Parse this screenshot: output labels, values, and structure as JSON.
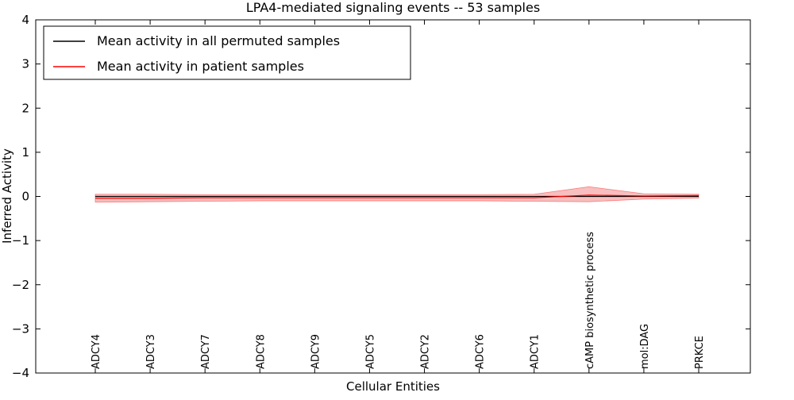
{
  "chart_data": {
    "type": "line",
    "title": "LPA4-mediated signaling events -- 53 samples",
    "xlabel": "Cellular Entities",
    "ylabel": "Inferred Activity",
    "ylim": [
      -4,
      4
    ],
    "yticks": [
      -4,
      -3,
      -2,
      -1,
      0,
      1,
      2,
      3,
      4
    ],
    "grid": false,
    "legend_position": "upper left",
    "categories": [
      "ADCY4",
      "ADCY3",
      "ADCY7",
      "ADCY8",
      "ADCY9",
      "ADCY5",
      "ADCY2",
      "ADCY6",
      "ADCY1",
      "cAMP biosynthetic process",
      "mol:DAG",
      "PRKCE"
    ],
    "series": [
      {
        "name": "Mean activity in all permuted samples",
        "color": "#000000",
        "values": [
          0,
          0,
          0,
          0,
          0,
          0,
          0,
          0,
          0,
          0,
          0,
          0
        ]
      },
      {
        "name": "Mean activity in patient samples",
        "color": "#ff0000",
        "band_fill": "#f08080",
        "values": [
          -0.04,
          -0.04,
          -0.03,
          -0.03,
          -0.03,
          -0.03,
          -0.03,
          -0.03,
          -0.03,
          0.03,
          0.01,
          0.02
        ],
        "band_upper": [
          0.05,
          0.05,
          0.04,
          0.04,
          0.04,
          0.04,
          0.04,
          0.04,
          0.05,
          0.22,
          0.06,
          0.05
        ],
        "band_lower": [
          -0.13,
          -0.12,
          -0.11,
          -0.1,
          -0.1,
          -0.1,
          -0.1,
          -0.1,
          -0.11,
          -0.12,
          -0.06,
          -0.04
        ]
      }
    ]
  }
}
